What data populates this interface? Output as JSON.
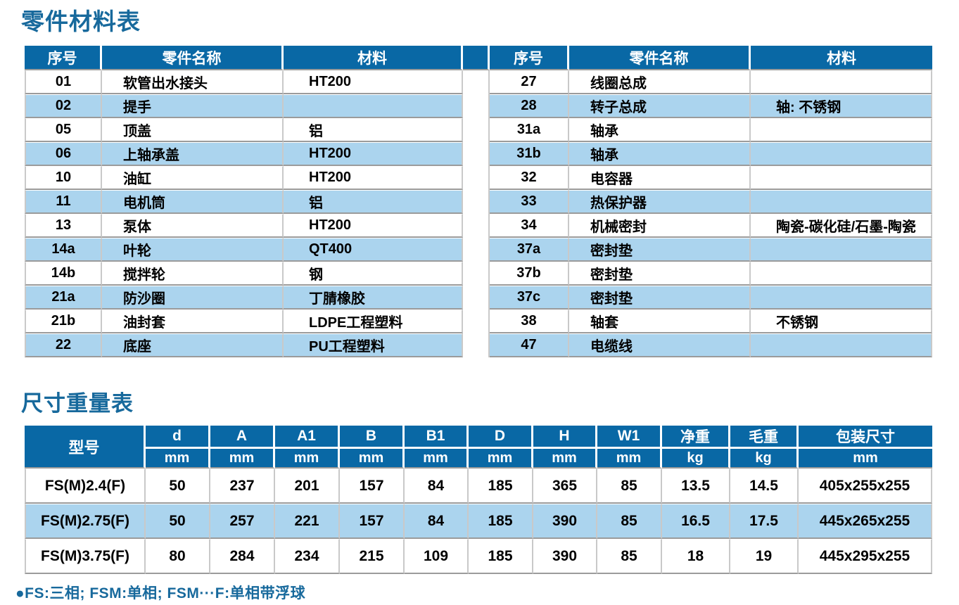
{
  "titles": {
    "parts": "零件材料表",
    "size": "尺寸重量表"
  },
  "footnote": "●FS:三相; FSM:单相; FSM···F:单相带浮球",
  "colors": {
    "header_bg": "#0968a5",
    "stripe_bg": "#abd4ee",
    "title_blue": "#17699c",
    "row_border": "#9b9b9b"
  },
  "parts_table": {
    "headers": {
      "no": "序号",
      "name": "零件名称",
      "material": "材料"
    },
    "left_rows": [
      {
        "no": "01",
        "name": "软管出水接头",
        "material": "HT200"
      },
      {
        "no": "02",
        "name": "提手",
        "material": ""
      },
      {
        "no": "05",
        "name": "顶盖",
        "material": "铝"
      },
      {
        "no": "06",
        "name": "上轴承盖",
        "material": "HT200"
      },
      {
        "no": "10",
        "name": "油缸",
        "material": "HT200"
      },
      {
        "no": "11",
        "name": "电机筒",
        "material": "铝"
      },
      {
        "no": "13",
        "name": "泵体",
        "material": "HT200"
      },
      {
        "no": "14a",
        "name": "叶轮",
        "material": "QT400"
      },
      {
        "no": "14b",
        "name": "搅拌轮",
        "material": "钢"
      },
      {
        "no": "21a",
        "name": "防沙圈",
        "material": "丁腈橡胶"
      },
      {
        "no": "21b",
        "name": "油封套",
        "material": "LDPE工程塑料"
      },
      {
        "no": "22",
        "name": "底座",
        "material": "PU工程塑料"
      }
    ],
    "right_rows": [
      {
        "no": "27",
        "name": "线圈总成",
        "material": ""
      },
      {
        "no": "28",
        "name": "转子总成",
        "material": "轴: 不锈钢"
      },
      {
        "no": "31a",
        "name": "轴承",
        "material": ""
      },
      {
        "no": "31b",
        "name": "轴承",
        "material": ""
      },
      {
        "no": "32",
        "name": "电容器",
        "material": ""
      },
      {
        "no": "33",
        "name": "热保护器",
        "material": ""
      },
      {
        "no": "34",
        "name": "机械密封",
        "material": "陶瓷-碳化硅/石墨-陶瓷"
      },
      {
        "no": "37a",
        "name": "密封垫",
        "material": ""
      },
      {
        "no": "37b",
        "name": "密封垫",
        "material": ""
      },
      {
        "no": "37c",
        "name": "密封垫",
        "material": ""
      },
      {
        "no": "38",
        "name": "轴套",
        "material": "不锈钢"
      },
      {
        "no": "47",
        "name": "电缆线",
        "material": ""
      }
    ]
  },
  "size_table": {
    "model_header": "型号",
    "columns": [
      {
        "label": "d",
        "unit": "mm"
      },
      {
        "label": "A",
        "unit": "mm"
      },
      {
        "label": "A1",
        "unit": "mm"
      },
      {
        "label": "B",
        "unit": "mm"
      },
      {
        "label": "B1",
        "unit": "mm"
      },
      {
        "label": "D",
        "unit": "mm"
      },
      {
        "label": "H",
        "unit": "mm"
      },
      {
        "label": "W1",
        "unit": "mm"
      },
      {
        "label": "净重",
        "unit": "kg"
      },
      {
        "label": "毛重",
        "unit": "kg"
      },
      {
        "label": "包装尺寸",
        "unit": "mm"
      }
    ],
    "rows": [
      {
        "model": "FS(M)2.4(F)",
        "values": [
          "50",
          "237",
          "201",
          "157",
          "84",
          "185",
          "365",
          "85",
          "13.5",
          "14.5",
          "405x255x255"
        ]
      },
      {
        "model": "FS(M)2.75(F)",
        "values": [
          "50",
          "257",
          "221",
          "157",
          "84",
          "185",
          "390",
          "85",
          "16.5",
          "17.5",
          "445x265x255"
        ]
      },
      {
        "model": "FS(M)3.75(F)",
        "values": [
          "80",
          "284",
          "234",
          "215",
          "109",
          "185",
          "390",
          "85",
          "18",
          "19",
          "445x295x255"
        ]
      }
    ]
  }
}
